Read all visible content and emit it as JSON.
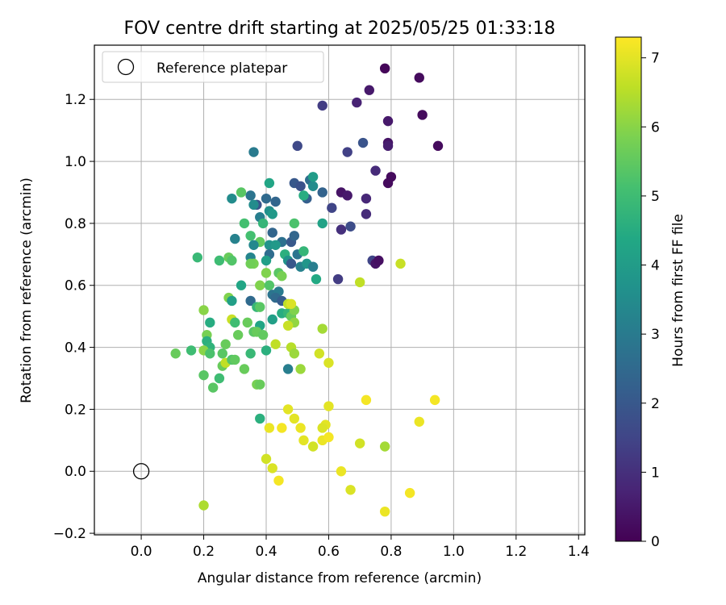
{
  "chart_data": {
    "type": "scatter",
    "title": "FOV centre drift starting at 2025/05/25 01:33:18",
    "xlabel": "Angular distance from reference (arcmin)",
    "ylabel": "Rotation from reference (arcmin)",
    "xlim": [
      -0.15,
      1.42
    ],
    "ylim": [
      -0.205,
      1.375
    ],
    "xticks": [
      0.0,
      0.2,
      0.4,
      0.6,
      0.8,
      1.0,
      1.2,
      1.4
    ],
    "xtick_labels": [
      "0.0",
      "0.2",
      "0.4",
      "0.6",
      "0.8",
      "1.0",
      "1.2",
      "1.4"
    ],
    "yticks": [
      -0.2,
      0.0,
      0.2,
      0.4,
      0.6,
      0.8,
      1.0,
      1.2
    ],
    "ytick_labels": [
      "−0.2",
      "0.0",
      "0.2",
      "0.4",
      "0.6",
      "0.8",
      "1.0",
      "1.2"
    ],
    "grid": true,
    "legend": {
      "position": "top-left",
      "label": "Reference platepar"
    },
    "reference_point": {
      "x": 0.0,
      "y": 0.0
    },
    "colorbar": {
      "label": "Hours from first FF file",
      "colormap": "viridis",
      "range": [
        0,
        7.3
      ],
      "ticks": [
        0,
        1,
        2,
        3,
        4,
        5,
        6,
        7
      ],
      "tick_labels": [
        "0",
        "1",
        "2",
        "3",
        "4",
        "5",
        "6",
        "7"
      ]
    },
    "points": [
      [
        0.78,
        1.3,
        0.1
      ],
      [
        0.89,
        1.27,
        0.2
      ],
      [
        0.73,
        1.23,
        0.5
      ],
      [
        0.69,
        1.19,
        0.7
      ],
      [
        0.79,
        1.13,
        0.5
      ],
      [
        0.9,
        1.15,
        0.2
      ],
      [
        0.79,
        1.06,
        0.4
      ],
      [
        0.79,
        1.05,
        0.6
      ],
      [
        0.95,
        1.05,
        0.2
      ],
      [
        0.8,
        0.95,
        0.2
      ],
      [
        0.79,
        0.93,
        0.2
      ],
      [
        0.75,
        0.97,
        0.9
      ],
      [
        0.58,
        1.18,
        1.3
      ],
      [
        0.71,
        1.06,
        1.9
      ],
      [
        0.66,
        1.03,
        1.4
      ],
      [
        0.5,
        1.05,
        1.6
      ],
      [
        0.36,
        1.03,
        3.0
      ],
      [
        0.64,
        0.9,
        0.4
      ],
      [
        0.66,
        0.89,
        0.5
      ],
      [
        0.72,
        0.88,
        0.8
      ],
      [
        0.72,
        0.83,
        0.9
      ],
      [
        0.61,
        0.85,
        1.5
      ],
      [
        0.64,
        0.78,
        1.0
      ],
      [
        0.67,
        0.79,
        1.7
      ],
      [
        0.74,
        0.68,
        1.5
      ],
      [
        0.75,
        0.67,
        0.4
      ],
      [
        0.76,
        0.68,
        0.3
      ],
      [
        0.63,
        0.62,
        1.3
      ],
      [
        0.54,
        0.94,
        2.6
      ],
      [
        0.55,
        0.92,
        3.5
      ],
      [
        0.58,
        0.9,
        2.3
      ],
      [
        0.55,
        0.95,
        4.0
      ],
      [
        0.49,
        0.93,
        2.0
      ],
      [
        0.51,
        0.92,
        1.8
      ],
      [
        0.53,
        0.88,
        2.2
      ],
      [
        0.52,
        0.89,
        4.5
      ],
      [
        0.41,
        0.93,
        4.3
      ],
      [
        0.4,
        0.88,
        2.5
      ],
      [
        0.43,
        0.87,
        2.4
      ],
      [
        0.37,
        0.86,
        1.9
      ],
      [
        0.35,
        0.89,
        2.8
      ],
      [
        0.36,
        0.86,
        3.5
      ],
      [
        0.29,
        0.88,
        3.5
      ],
      [
        0.32,
        0.9,
        5.4
      ],
      [
        0.41,
        0.84,
        3.6
      ],
      [
        0.42,
        0.83,
        3.9
      ],
      [
        0.38,
        0.82,
        3.1
      ],
      [
        0.39,
        0.8,
        4.8
      ],
      [
        0.33,
        0.8,
        5.1
      ],
      [
        0.49,
        0.8,
        5.2
      ],
      [
        0.58,
        0.8,
        4.2
      ],
      [
        0.42,
        0.77,
        2.4
      ],
      [
        0.45,
        0.74,
        2.7
      ],
      [
        0.48,
        0.74,
        2.0
      ],
      [
        0.49,
        0.76,
        2.4
      ],
      [
        0.35,
        0.76,
        5.1
      ],
      [
        0.38,
        0.74,
        5.5
      ],
      [
        0.3,
        0.75,
        3.2
      ],
      [
        0.36,
        0.73,
        3.4
      ],
      [
        0.41,
        0.73,
        3.7
      ],
      [
        0.43,
        0.73,
        3.9
      ],
      [
        0.41,
        0.7,
        2.6
      ],
      [
        0.46,
        0.7,
        4.6
      ],
      [
        0.5,
        0.7,
        2.8
      ],
      [
        0.52,
        0.71,
        4.8
      ],
      [
        0.4,
        0.68,
        4.1
      ],
      [
        0.47,
        0.68,
        3.7
      ],
      [
        0.48,
        0.67,
        2.0
      ],
      [
        0.51,
        0.66,
        3.2
      ],
      [
        0.53,
        0.67,
        3.8
      ],
      [
        0.55,
        0.66,
        3.1
      ],
      [
        0.56,
        0.62,
        4.4
      ],
      [
        0.35,
        0.69,
        3.3
      ],
      [
        0.36,
        0.67,
        5.8
      ],
      [
        0.4,
        0.64,
        5.9
      ],
      [
        0.25,
        0.68,
        5.0
      ],
      [
        0.18,
        0.69,
        4.9
      ],
      [
        0.28,
        0.69,
        5.6
      ],
      [
        0.29,
        0.68,
        5.3
      ],
      [
        0.35,
        0.67,
        5.7
      ],
      [
        0.44,
        0.64,
        5.4
      ],
      [
        0.45,
        0.63,
        5.8
      ],
      [
        0.38,
        0.6,
        5.9
      ],
      [
        0.41,
        0.6,
        5.3
      ],
      [
        0.32,
        0.6,
        4.3
      ],
      [
        0.42,
        0.57,
        2.8
      ],
      [
        0.44,
        0.58,
        3.0
      ],
      [
        0.43,
        0.56,
        2.5
      ],
      [
        0.45,
        0.55,
        2.1
      ],
      [
        0.35,
        0.55,
        2.5
      ],
      [
        0.37,
        0.53,
        4.8
      ],
      [
        0.38,
        0.53,
        5.4
      ],
      [
        0.2,
        0.52,
        6.0
      ],
      [
        0.28,
        0.56,
        5.9
      ],
      [
        0.29,
        0.55,
        4.1
      ],
      [
        0.45,
        0.51,
        4.5
      ],
      [
        0.47,
        0.51,
        4.8
      ],
      [
        0.48,
        0.5,
        5.6
      ],
      [
        0.49,
        0.52,
        5.9
      ],
      [
        0.47,
        0.54,
        6.6
      ],
      [
        0.29,
        0.49,
        6.7
      ],
      [
        0.3,
        0.48,
        5.0
      ],
      [
        0.34,
        0.48,
        5.6
      ],
      [
        0.38,
        0.47,
        4.3
      ],
      [
        0.42,
        0.49,
        4.1
      ],
      [
        0.49,
        0.48,
        6.1
      ],
      [
        0.22,
        0.48,
        4.5
      ],
      [
        0.36,
        0.45,
        5.4
      ],
      [
        0.37,
        0.45,
        5.6
      ],
      [
        0.39,
        0.44,
        5.5
      ],
      [
        0.31,
        0.44,
        5.6
      ],
      [
        0.21,
        0.44,
        5.8
      ],
      [
        0.21,
        0.42,
        4.6
      ],
      [
        0.22,
        0.4,
        4.7
      ],
      [
        0.2,
        0.39,
        6.0
      ],
      [
        0.22,
        0.38,
        5.2
      ],
      [
        0.11,
        0.38,
        5.6
      ],
      [
        0.16,
        0.39,
        5.0
      ],
      [
        0.26,
        0.38,
        5.4
      ],
      [
        0.27,
        0.41,
        5.6
      ],
      [
        0.4,
        0.39,
        4.6
      ],
      [
        0.35,
        0.38,
        4.9
      ],
      [
        0.26,
        0.34,
        5.6
      ],
      [
        0.27,
        0.35,
        6.6
      ],
      [
        0.29,
        0.36,
        5.3
      ],
      [
        0.3,
        0.36,
        5.5
      ],
      [
        0.33,
        0.33,
        5.6
      ],
      [
        0.2,
        0.31,
        5.4
      ],
      [
        0.25,
        0.3,
        5.0
      ],
      [
        0.23,
        0.27,
        5.4
      ],
      [
        0.37,
        0.28,
        5.8
      ],
      [
        0.38,
        0.28,
        5.6
      ],
      [
        0.38,
        0.17,
        4.6
      ],
      [
        0.47,
        0.33,
        3.1
      ],
      [
        0.43,
        0.41,
        6.6
      ],
      [
        0.48,
        0.4,
        6.5
      ],
      [
        0.49,
        0.38,
        6.2
      ],
      [
        0.51,
        0.33,
        6.2
      ],
      [
        0.47,
        0.47,
        6.7
      ],
      [
        0.48,
        0.54,
        6.9
      ],
      [
        0.58,
        0.46,
        6.3
      ],
      [
        0.57,
        0.38,
        6.8
      ],
      [
        0.6,
        0.35,
        6.9
      ],
      [
        0.7,
        0.61,
        6.6
      ],
      [
        0.83,
        0.67,
        6.7
      ],
      [
        0.47,
        0.2,
        7.0
      ],
      [
        0.49,
        0.17,
        7.0
      ],
      [
        0.41,
        0.14,
        7.1
      ],
      [
        0.45,
        0.14,
        7.2
      ],
      [
        0.51,
        0.14,
        7.1
      ],
      [
        0.52,
        0.1,
        7.0
      ],
      [
        0.55,
        0.08,
        6.8
      ],
      [
        0.58,
        0.1,
        7.1
      ],
      [
        0.59,
        0.15,
        7.0
      ],
      [
        0.58,
        0.14,
        6.9
      ],
      [
        0.6,
        0.21,
        7.0
      ],
      [
        0.6,
        0.11,
        7.2
      ],
      [
        0.72,
        0.23,
        7.2
      ],
      [
        0.7,
        0.09,
        6.8
      ],
      [
        0.78,
        0.08,
        6.3
      ],
      [
        0.89,
        0.16,
        7.1
      ],
      [
        0.94,
        0.23,
        7.2
      ],
      [
        0.64,
        0.0,
        7.1
      ],
      [
        0.67,
        -0.06,
        6.9
      ],
      [
        0.78,
        -0.13,
        7.1
      ],
      [
        0.86,
        -0.07,
        7.2
      ],
      [
        0.4,
        0.04,
        6.8
      ],
      [
        0.42,
        0.01,
        6.9
      ],
      [
        0.44,
        -0.03,
        7.2
      ],
      [
        0.2,
        -0.11,
        6.4
      ]
    ]
  }
}
